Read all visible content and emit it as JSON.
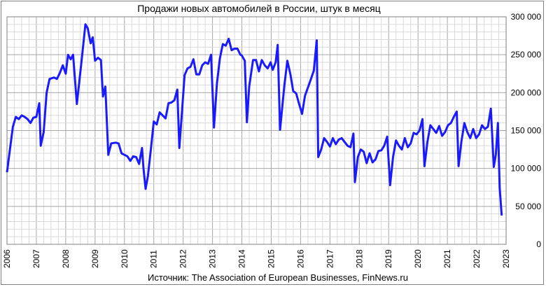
{
  "chart_data": {
    "type": "line",
    "title": "Продажи новых автомобилей в России, штук в месяц",
    "source": "Источник: The Association of European Businesses, FinNews.ru",
    "xlabel": "",
    "ylabel": "",
    "xlim": [
      2006,
      2023
    ],
    "ylim": [
      0,
      300000
    ],
    "x_ticks": [
      "2006",
      "2007",
      "2008",
      "2009",
      "2010",
      "2011",
      "2012",
      "2013",
      "2014",
      "2015",
      "2016",
      "2017",
      "2018",
      "2019",
      "2020",
      "2021",
      "2022",
      "2023"
    ],
    "y_ticks": [
      "0",
      "50 000",
      "100 000",
      "150 000",
      "200 000",
      "250 000",
      "300 000"
    ],
    "y_axis_position": "right",
    "grid": true,
    "line_color": "#1a1aff",
    "series": [
      {
        "values": [
          [
            2006.0,
            95000
          ],
          [
            2006.1,
            125000
          ],
          [
            2006.2,
            155000
          ],
          [
            2006.3,
            168000
          ],
          [
            2006.4,
            165000
          ],
          [
            2006.5,
            170000
          ],
          [
            2006.6,
            168000
          ],
          [
            2006.7,
            165000
          ],
          [
            2006.8,
            160000
          ],
          [
            2006.9,
            167000
          ],
          [
            2007.0,
            168000
          ],
          [
            2007.1,
            186000
          ],
          [
            2007.15,
            130000
          ],
          [
            2007.25,
            148000
          ],
          [
            2007.35,
            200000
          ],
          [
            2007.45,
            218000
          ],
          [
            2007.6,
            220000
          ],
          [
            2007.7,
            218000
          ],
          [
            2007.8,
            226000
          ],
          [
            2007.9,
            236000
          ],
          [
            2008.0,
            225000
          ],
          [
            2008.08,
            250000
          ],
          [
            2008.17,
            244000
          ],
          [
            2008.25,
            250000
          ],
          [
            2008.38,
            185000
          ],
          [
            2008.55,
            245000
          ],
          [
            2008.67,
            290000
          ],
          [
            2008.75,
            285000
          ],
          [
            2008.85,
            265000
          ],
          [
            2008.92,
            273000
          ],
          [
            2009.0,
            242000
          ],
          [
            2009.1,
            246000
          ],
          [
            2009.2,
            243000
          ],
          [
            2009.27,
            195000
          ],
          [
            2009.35,
            208000
          ],
          [
            2009.45,
            118000
          ],
          [
            2009.55,
            133000
          ],
          [
            2009.7,
            134000
          ],
          [
            2009.8,
            133000
          ],
          [
            2009.9,
            120000
          ],
          [
            2010.0,
            118000
          ],
          [
            2010.1,
            116000
          ],
          [
            2010.2,
            110000
          ],
          [
            2010.3,
            116000
          ],
          [
            2010.4,
            115000
          ],
          [
            2010.5,
            106000
          ],
          [
            2010.6,
            127000
          ],
          [
            2010.65,
            100000
          ],
          [
            2010.72,
            73000
          ],
          [
            2010.8,
            90000
          ],
          [
            2010.9,
            125000
          ],
          [
            2011.0,
            162000
          ],
          [
            2011.1,
            158000
          ],
          [
            2011.2,
            174000
          ],
          [
            2011.3,
            170000
          ],
          [
            2011.4,
            166000
          ],
          [
            2011.5,
            186000
          ],
          [
            2011.6,
            187000
          ],
          [
            2011.7,
            190000
          ],
          [
            2011.8,
            204000
          ],
          [
            2011.87,
            127000
          ],
          [
            2011.95,
            170000
          ],
          [
            2012.05,
            223000
          ],
          [
            2012.15,
            232000
          ],
          [
            2012.25,
            234000
          ],
          [
            2012.35,
            244000
          ],
          [
            2012.45,
            224000
          ],
          [
            2012.55,
            224000
          ],
          [
            2012.65,
            236000
          ],
          [
            2012.75,
            240000
          ],
          [
            2012.85,
            238000
          ],
          [
            2012.95,
            250000
          ],
          [
            2013.05,
            154000
          ],
          [
            2013.15,
            212000
          ],
          [
            2013.25,
            245000
          ],
          [
            2013.35,
            264000
          ],
          [
            2013.45,
            262000
          ],
          [
            2013.55,
            271000
          ],
          [
            2013.65,
            256000
          ],
          [
            2013.75,
            258000
          ],
          [
            2013.85,
            258000
          ],
          [
            2013.95,
            250000
          ],
          [
            2014.0,
            249000
          ],
          [
            2014.1,
            242000
          ],
          [
            2014.17,
            161000
          ],
          [
            2014.25,
            208000
          ],
          [
            2014.38,
            243000
          ],
          [
            2014.48,
            243000
          ],
          [
            2014.58,
            228000
          ],
          [
            2014.68,
            243000
          ],
          [
            2014.78,
            236000
          ],
          [
            2014.88,
            232000
          ],
          [
            2014.98,
            240000
          ],
          [
            2015.05,
            230000
          ],
          [
            2015.15,
            240000
          ],
          [
            2015.22,
            263000
          ],
          [
            2015.3,
            151000
          ],
          [
            2015.45,
            210000
          ],
          [
            2015.55,
            242000
          ],
          [
            2015.65,
            225000
          ],
          [
            2015.75,
            202000
          ],
          [
            2015.85,
            199000
          ],
          [
            2015.95,
            185000
          ],
          [
            2016.05,
            172000
          ],
          [
            2016.15,
            196000
          ],
          [
            2016.3,
            212000
          ],
          [
            2016.45,
            229000
          ],
          [
            2016.55,
            269000
          ],
          [
            2016.6,
            115000
          ],
          [
            2016.7,
            125000
          ],
          [
            2016.8,
            140000
          ],
          [
            2016.9,
            135000
          ],
          [
            2017.0,
            129000
          ],
          [
            2017.1,
            140000
          ],
          [
            2017.2,
            132000
          ],
          [
            2017.3,
            138000
          ],
          [
            2017.4,
            140000
          ],
          [
            2017.5,
            135000
          ],
          [
            2017.6,
            130000
          ],
          [
            2017.7,
            128000
          ],
          [
            2017.8,
            146000
          ],
          [
            2017.85,
            82000
          ],
          [
            2017.95,
            115000
          ],
          [
            2018.05,
            125000
          ],
          [
            2018.15,
            122000
          ],
          [
            2018.25,
            107000
          ],
          [
            2018.35,
            120000
          ],
          [
            2018.45,
            108000
          ],
          [
            2018.55,
            112000
          ],
          [
            2018.65,
            123000
          ],
          [
            2018.75,
            124000
          ],
          [
            2018.85,
            130000
          ],
          [
            2018.95,
            142000
          ],
          [
            2019.05,
            78000
          ],
          [
            2019.15,
            115000
          ],
          [
            2019.25,
            137000
          ],
          [
            2019.35,
            130000
          ],
          [
            2019.45,
            125000
          ],
          [
            2019.55,
            140000
          ],
          [
            2019.65,
            128000
          ],
          [
            2019.75,
            133000
          ],
          [
            2019.85,
            147000
          ],
          [
            2019.95,
            145000
          ],
          [
            2020.05,
            150000
          ],
          [
            2020.15,
            165000
          ],
          [
            2020.22,
            103000
          ],
          [
            2020.32,
            135000
          ],
          [
            2020.42,
            157000
          ],
          [
            2020.52,
            152000
          ],
          [
            2020.62,
            147000
          ],
          [
            2020.72,
            156000
          ],
          [
            2020.82,
            143000
          ],
          [
            2020.92,
            148000
          ],
          [
            2021.02,
            157000
          ],
          [
            2021.12,
            160000
          ],
          [
            2021.22,
            168000
          ],
          [
            2021.32,
            175000
          ],
          [
            2021.38,
            103000
          ],
          [
            2021.48,
            136000
          ],
          [
            2021.58,
            160000
          ],
          [
            2021.68,
            148000
          ],
          [
            2021.78,
            140000
          ],
          [
            2021.88,
            152000
          ],
          [
            2021.98,
            140000
          ],
          [
            2022.08,
            145000
          ],
          [
            2022.18,
            157000
          ],
          [
            2022.28,
            152000
          ],
          [
            2022.38,
            155000
          ],
          [
            2022.48,
            179000
          ],
          [
            2022.58,
            102000
          ],
          [
            2022.65,
            118000
          ],
          [
            2022.72,
            160000
          ],
          [
            2022.78,
            75000
          ],
          [
            2022.85,
            38000
          ]
        ]
      }
    ]
  }
}
